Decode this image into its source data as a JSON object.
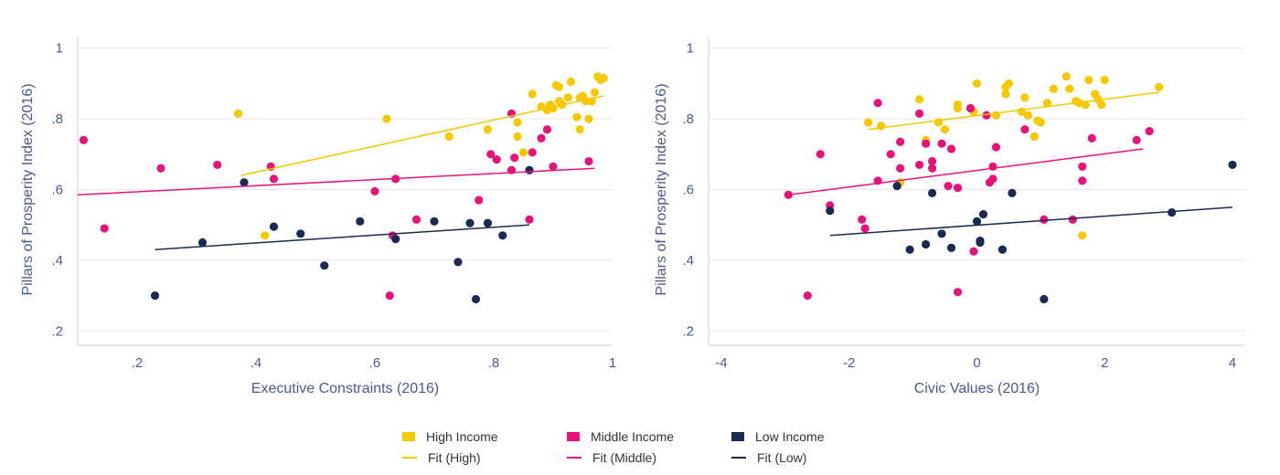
{
  "colors": {
    "high": "#f5c800",
    "middle": "#e8137a",
    "low": "#1b2a52"
  },
  "legend": [
    {
      "label": "High Income",
      "kind": "box",
      "color": "#f5c800"
    },
    {
      "label": "Middle Income",
      "kind": "box",
      "color": "#e8137a"
    },
    {
      "label": "Low Income",
      "kind": "box",
      "color": "#1b2a52"
    },
    {
      "label": "Fit (High)",
      "kind": "line",
      "color": "#f5c800"
    },
    {
      "label": "Fit (Middle)",
      "kind": "line",
      "color": "#e8137a"
    },
    {
      "label": "Fit (Low)",
      "kind": "line",
      "color": "#1b2a52"
    }
  ],
  "chart_data": [
    {
      "type": "scatter",
      "xlabel": "Executive Constraints (2016)",
      "ylabel": "Pillars of Prosperity Index (2016)",
      "xlim": [
        0.1,
        1.0
      ],
      "ylim": [
        0.18,
        1.02
      ],
      "xticks": [
        {
          "v": 0.2,
          "t": ".2"
        },
        {
          "v": 0.4,
          "t": ".4"
        },
        {
          "v": 0.6,
          "t": ".6"
        },
        {
          "v": 0.8,
          "t": ".8"
        },
        {
          "v": 1.0,
          "t": "1"
        }
      ],
      "yticks": [
        {
          "v": 0.2,
          "t": ".2"
        },
        {
          "v": 0.4,
          "t": ".4"
        },
        {
          "v": 0.6,
          "t": ".6"
        },
        {
          "v": 0.8,
          "t": ".8"
        },
        {
          "v": 1.0,
          "t": "1"
        }
      ],
      "grid": true,
      "series": [
        {
          "name": "High Income",
          "group": "high",
          "points": [
            [
              0.37,
              0.815
            ],
            [
              0.415,
              0.47
            ],
            [
              0.62,
              0.8
            ],
            [
              0.725,
              0.75
            ],
            [
              0.79,
              0.77
            ],
            [
              0.84,
              0.79
            ],
            [
              0.84,
              0.75
            ],
            [
              0.85,
              0.705
            ],
            [
              0.865,
              0.87
            ],
            [
              0.88,
              0.835
            ],
            [
              0.89,
              0.825
            ],
            [
              0.895,
              0.84
            ],
            [
              0.9,
              0.83
            ],
            [
              0.905,
              0.895
            ],
            [
              0.91,
              0.85
            ],
            [
              0.91,
              0.89
            ],
            [
              0.915,
              0.84
            ],
            [
              0.925,
              0.86
            ],
            [
              0.93,
              0.905
            ],
            [
              0.94,
              0.805
            ],
            [
              0.945,
              0.77
            ],
            [
              0.945,
              0.86
            ],
            [
              0.95,
              0.865
            ],
            [
              0.955,
              0.85
            ],
            [
              0.96,
              0.8
            ],
            [
              0.965,
              0.85
            ],
            [
              0.97,
              0.875
            ],
            [
              0.975,
              0.92
            ],
            [
              0.98,
              0.91
            ],
            [
              0.985,
              0.915
            ]
          ]
        },
        {
          "name": "Middle Income",
          "group": "middle",
          "points": [
            [
              0.11,
              0.74
            ],
            [
              0.145,
              0.49
            ],
            [
              0.24,
              0.66
            ],
            [
              0.335,
              0.67
            ],
            [
              0.425,
              0.665
            ],
            [
              0.43,
              0.63
            ],
            [
              0.6,
              0.595
            ],
            [
              0.625,
              0.3
            ],
            [
              0.63,
              0.47
            ],
            [
              0.635,
              0.63
            ],
            [
              0.67,
              0.515
            ],
            [
              0.775,
              0.57
            ],
            [
              0.795,
              0.7
            ],
            [
              0.805,
              0.685
            ],
            [
              0.83,
              0.815
            ],
            [
              0.83,
              0.655
            ],
            [
              0.835,
              0.69
            ],
            [
              0.86,
              0.515
            ],
            [
              0.865,
              0.705
            ],
            [
              0.88,
              0.745
            ],
            [
              0.89,
              0.77
            ],
            [
              0.9,
              0.665
            ],
            [
              0.96,
              0.68
            ]
          ]
        },
        {
          "name": "Low Income",
          "group": "low",
          "points": [
            [
              0.23,
              0.3
            ],
            [
              0.31,
              0.45
            ],
            [
              0.38,
              0.62
            ],
            [
              0.43,
              0.495
            ],
            [
              0.475,
              0.475
            ],
            [
              0.515,
              0.385
            ],
            [
              0.575,
              0.51
            ],
            [
              0.635,
              0.46
            ],
            [
              0.7,
              0.51
            ],
            [
              0.74,
              0.395
            ],
            [
              0.76,
              0.505
            ],
            [
              0.77,
              0.29
            ],
            [
              0.79,
              0.505
            ],
            [
              0.815,
              0.47
            ],
            [
              0.86,
              0.655
            ]
          ]
        }
      ],
      "fits": [
        {
          "name": "Fit (High)",
          "group": "high",
          "x": [
            0.375,
            0.985
          ],
          "y": [
            0.64,
            0.865
          ]
        },
        {
          "name": "Fit (Middle)",
          "group": "middle",
          "x": [
            0.1,
            0.97
          ],
          "y": [
            0.585,
            0.66
          ]
        },
        {
          "name": "Fit (Low)",
          "group": "low",
          "x": [
            0.23,
            0.86
          ],
          "y": [
            0.43,
            0.5
          ]
        }
      ]
    },
    {
      "type": "scatter",
      "xlabel": "Civic Values (2016)",
      "ylabel": "Pillars of Prosperity Index (2016)",
      "xlim": [
        -4.2,
        4.2
      ],
      "ylim": [
        0.18,
        1.02
      ],
      "xticks": [
        {
          "v": -4,
          "t": "-4"
        },
        {
          "v": -2,
          "t": "-2"
        },
        {
          "v": 0,
          "t": "0"
        },
        {
          "v": 2,
          "t": "2"
        },
        {
          "v": 4,
          "t": "4"
        }
      ],
      "yticks": [
        {
          "v": 0.2,
          "t": ".2"
        },
        {
          "v": 0.4,
          "t": ".4"
        },
        {
          "v": 0.6,
          "t": ".6"
        },
        {
          "v": 0.8,
          "t": ".8"
        },
        {
          "v": 1.0,
          "t": "1"
        }
      ],
      "grid": true,
      "series": [
        {
          "name": "High Income",
          "group": "high",
          "points": [
            [
              -1.7,
              0.79
            ],
            [
              -1.5,
              0.78
            ],
            [
              -1.2,
              0.62
            ],
            [
              -0.9,
              0.855
            ],
            [
              -0.8,
              0.74
            ],
            [
              -0.6,
              0.79
            ],
            [
              -0.5,
              0.77
            ],
            [
              -0.3,
              0.84
            ],
            [
              -0.3,
              0.83
            ],
            [
              -0.1,
              0.83
            ],
            [
              -0.05,
              0.82
            ],
            [
              0.0,
              0.9
            ],
            [
              0.3,
              0.81
            ],
            [
              0.45,
              0.87
            ],
            [
              0.45,
              0.89
            ],
            [
              0.5,
              0.9
            ],
            [
              0.7,
              0.82
            ],
            [
              0.75,
              0.86
            ],
            [
              0.8,
              0.81
            ],
            [
              0.9,
              0.75
            ],
            [
              0.95,
              0.795
            ],
            [
              1.0,
              0.79
            ],
            [
              1.1,
              0.845
            ],
            [
              1.2,
              0.885
            ],
            [
              1.4,
              0.92
            ],
            [
              1.45,
              0.885
            ],
            [
              1.55,
              0.85
            ],
            [
              1.6,
              0.845
            ],
            [
              1.65,
              0.47
            ],
            [
              1.7,
              0.84
            ],
            [
              1.75,
              0.91
            ],
            [
              1.85,
              0.87
            ],
            [
              1.9,
              0.855
            ],
            [
              1.95,
              0.84
            ],
            [
              2.0,
              0.91
            ],
            [
              2.85,
              0.89
            ]
          ]
        },
        {
          "name": "Middle Income",
          "group": "middle",
          "points": [
            [
              -2.95,
              0.585
            ],
            [
              -2.65,
              0.3
            ],
            [
              -2.45,
              0.7
            ],
            [
              -2.3,
              0.555
            ],
            [
              -1.8,
              0.515
            ],
            [
              -1.75,
              0.49
            ],
            [
              -1.55,
              0.845
            ],
            [
              -1.55,
              0.625
            ],
            [
              -1.35,
              0.7
            ],
            [
              -1.2,
              0.735
            ],
            [
              -1.2,
              0.66
            ],
            [
              -0.9,
              0.67
            ],
            [
              -0.9,
              0.815
            ],
            [
              -0.8,
              0.73
            ],
            [
              -0.7,
              0.68
            ],
            [
              -0.7,
              0.66
            ],
            [
              -0.55,
              0.73
            ],
            [
              -0.45,
              0.61
            ],
            [
              -0.4,
              0.715
            ],
            [
              -0.3,
              0.605
            ],
            [
              -0.3,
              0.31
            ],
            [
              -0.1,
              0.83
            ],
            [
              -0.05,
              0.425
            ],
            [
              0.15,
              0.81
            ],
            [
              0.2,
              0.62
            ],
            [
              0.25,
              0.665
            ],
            [
              0.25,
              0.63
            ],
            [
              0.3,
              0.72
            ],
            [
              0.75,
              0.77
            ],
            [
              1.05,
              0.515
            ],
            [
              1.5,
              0.515
            ],
            [
              1.65,
              0.665
            ],
            [
              1.65,
              0.625
            ],
            [
              1.8,
              0.745
            ],
            [
              2.5,
              0.74
            ],
            [
              2.7,
              0.765
            ]
          ]
        },
        {
          "name": "Low Income",
          "group": "low",
          "points": [
            [
              -2.3,
              0.54
            ],
            [
              -1.25,
              0.61
            ],
            [
              -1.05,
              0.43
            ],
            [
              -0.8,
              0.445
            ],
            [
              -0.7,
              0.59
            ],
            [
              -0.55,
              0.475
            ],
            [
              -0.4,
              0.435
            ],
            [
              0.0,
              0.51
            ],
            [
              0.05,
              0.455
            ],
            [
              0.05,
              0.45
            ],
            [
              0.1,
              0.53
            ],
            [
              0.4,
              0.43
            ],
            [
              0.55,
              0.59
            ],
            [
              1.05,
              0.29
            ],
            [
              3.05,
              0.535
            ],
            [
              4.0,
              0.67
            ]
          ]
        }
      ],
      "fits": [
        {
          "name": "Fit (High)",
          "group": "high",
          "x": [
            -1.7,
            2.85
          ],
          "y": [
            0.77,
            0.875
          ]
        },
        {
          "name": "Fit (Middle)",
          "group": "middle",
          "x": [
            -2.95,
            2.6
          ],
          "y": [
            0.585,
            0.715
          ]
        },
        {
          "name": "Fit (Low)",
          "group": "low",
          "x": [
            -2.3,
            4.0
          ],
          "y": [
            0.47,
            0.55
          ]
        }
      ]
    }
  ]
}
